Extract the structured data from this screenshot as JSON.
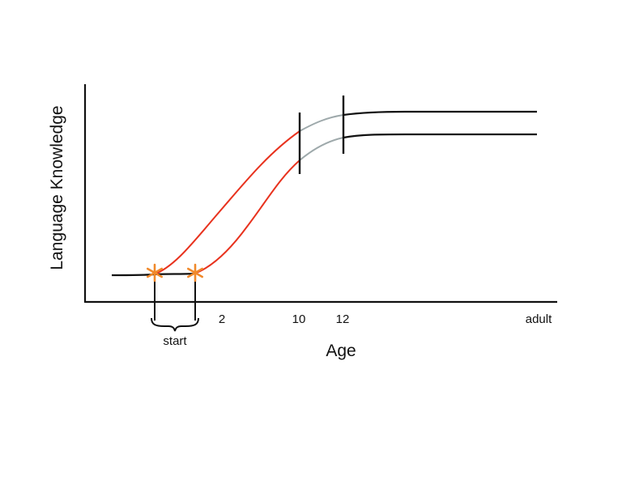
{
  "diagram": {
    "y_axis_label": "Language Knowledge",
    "x_axis_label": "Age",
    "x_ticks": [
      "2",
      "10",
      "12",
      "adult"
    ],
    "bracket_label": "start",
    "colors": {
      "axis": "#111111",
      "plateau": "#111111",
      "growth": "#e8321e",
      "transition": "#9ea9ab",
      "onset_marker": "#f0892b",
      "boundary_marker": "#111111"
    },
    "markers": {
      "onset": "asterisk",
      "boundary": "vertical-bar"
    }
  }
}
